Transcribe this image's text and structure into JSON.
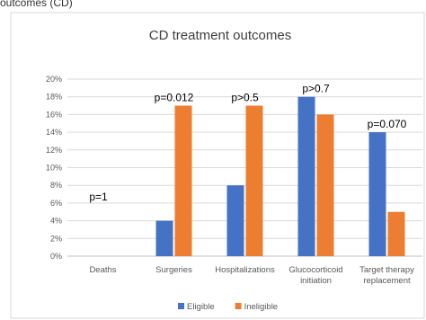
{
  "page": {
    "top_text": "outcomes (CD)"
  },
  "chart_data": {
    "type": "bar",
    "title": "CD treatment outcomes",
    "categories": [
      [
        "Deaths"
      ],
      [
        "Surgeries"
      ],
      [
        "Hospitalizations"
      ],
      [
        "Glucocorticoid",
        "initiation"
      ],
      [
        "Target therapy",
        "replacement"
      ]
    ],
    "series": [
      {
        "name": "Eligible",
        "color": "#4472C4",
        "values": [
          0,
          4,
          8,
          18,
          14
        ]
      },
      {
        "name": "Ineligible",
        "color": "#ED7D31",
        "values": [
          0,
          17,
          17,
          16,
          5
        ]
      }
    ],
    "p_values": [
      "p=1",
      "p=0.012",
      "p>0.5",
      "p>0.7",
      "p=0.070"
    ],
    "ylim": [
      0,
      20
    ],
    "y_ticks": [
      "0%",
      "2%",
      "4%",
      "6%",
      "8%",
      "10%",
      "12%",
      "14%",
      "16%",
      "18%",
      "20%"
    ],
    "grid": true,
    "legend": "bottom",
    "xlabel": "",
    "ylabel": ""
  }
}
